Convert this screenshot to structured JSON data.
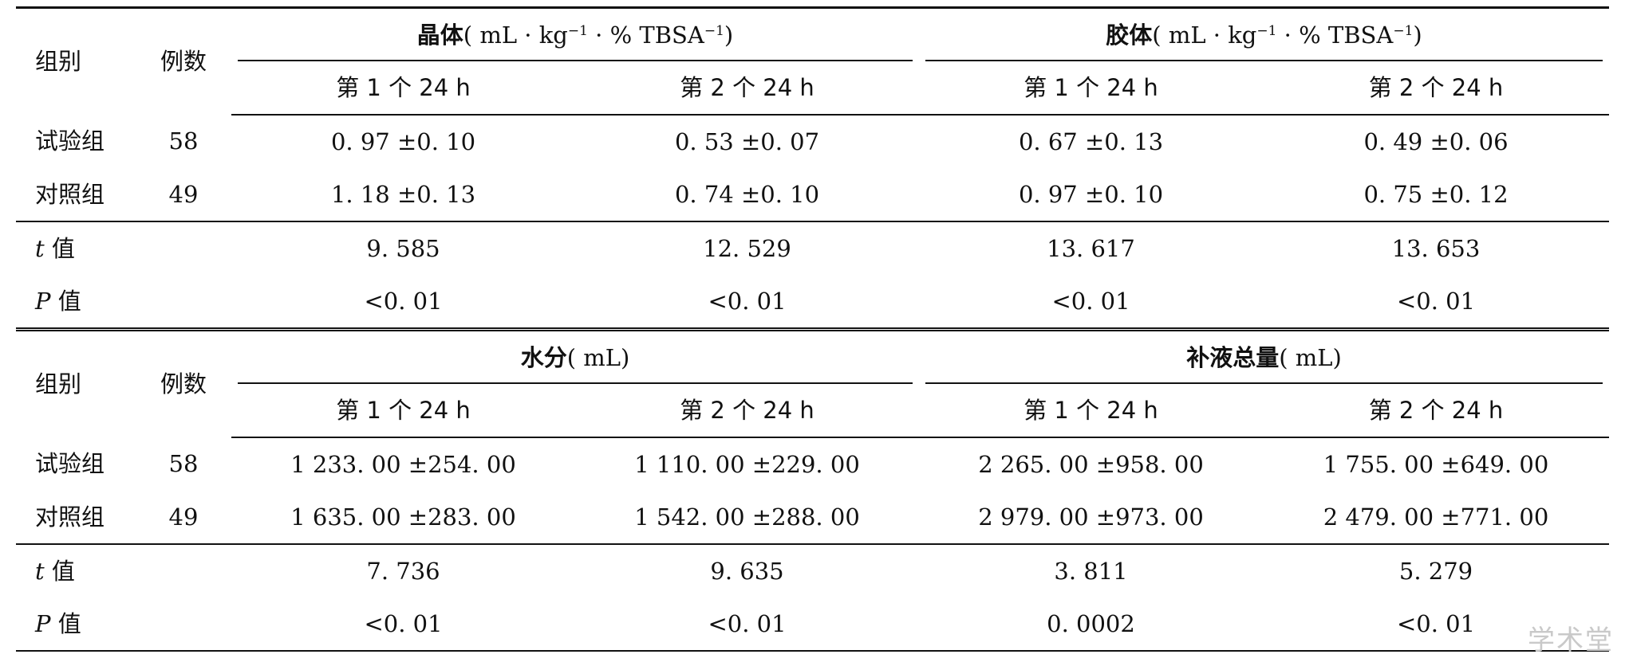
{
  "table1": {
    "header": {
      "group": "组别",
      "cases": "例数",
      "crystal_label": "晶体",
      "colloid_label": "胶体",
      "unit_prefix": "( mL · kg",
      "unit_sup1": "−1",
      "unit_mid": " · % TBSA",
      "unit_sup2": "−1",
      "unit_suffix": ")"
    },
    "subheaders": [
      "第 1 个 24  h",
      "第 2 个 24  h",
      "第 1 个 24  h",
      "第 2 个 24  h"
    ],
    "rows": [
      {
        "group": "试验组",
        "n": "58",
        "values": [
          "0. 97 ±0. 10",
          "0. 53 ±0. 07",
          "0. 67 ±0. 13",
          "0. 49 ±0. 06"
        ]
      },
      {
        "group": "对照组",
        "n": "49",
        "values": [
          "1. 18 ±0. 13",
          "0. 74 ±0. 10",
          "0. 97 ±0. 10",
          "0. 75 ±0. 12"
        ]
      }
    ],
    "t_row": {
      "label_italic": "t",
      "label_suffix": " 值",
      "values": [
        "9. 585",
        "12. 529",
        "13. 617",
        "13. 653"
      ]
    },
    "p_row": {
      "label_italic": "P",
      "label_suffix": " 值",
      "values": [
        "<0. 01",
        "<0. 01",
        "<0. 01",
        "<0. 01"
      ]
    }
  },
  "table2": {
    "header": {
      "group": "组别",
      "cases": "例数",
      "water_label": "水分",
      "water_unit": "( mL)",
      "total_label": "补液总量",
      "total_unit": "( mL)"
    },
    "subheaders": [
      "第 1 个 24  h",
      "第 2 个 24  h",
      "第 1 个 24  h",
      "第 2 个 24  h"
    ],
    "rows": [
      {
        "group": "试验组",
        "n": "58",
        "values": [
          "1 233. 00 ±254. 00",
          "1 110. 00 ±229. 00",
          "2 265. 00 ±958. 00",
          "1 755. 00 ±649. 00"
        ]
      },
      {
        "group": "对照组",
        "n": "49",
        "values": [
          "1 635. 00 ±283. 00",
          "1 542. 00 ±288. 00",
          "2 979. 00 ±973. 00",
          "2 479. 00 ±771. 00"
        ]
      }
    ],
    "t_row": {
      "label_italic": "t",
      "label_suffix": " 值",
      "values": [
        "7. 736",
        "9. 635",
        "3. 811",
        "5. 279"
      ]
    },
    "p_row": {
      "label_italic": "P",
      "label_suffix": " 值",
      "values": [
        "<0. 01",
        "<0. 01",
        "0. 0002",
        "<0. 01"
      ]
    }
  },
  "watermark": "学术堂"
}
